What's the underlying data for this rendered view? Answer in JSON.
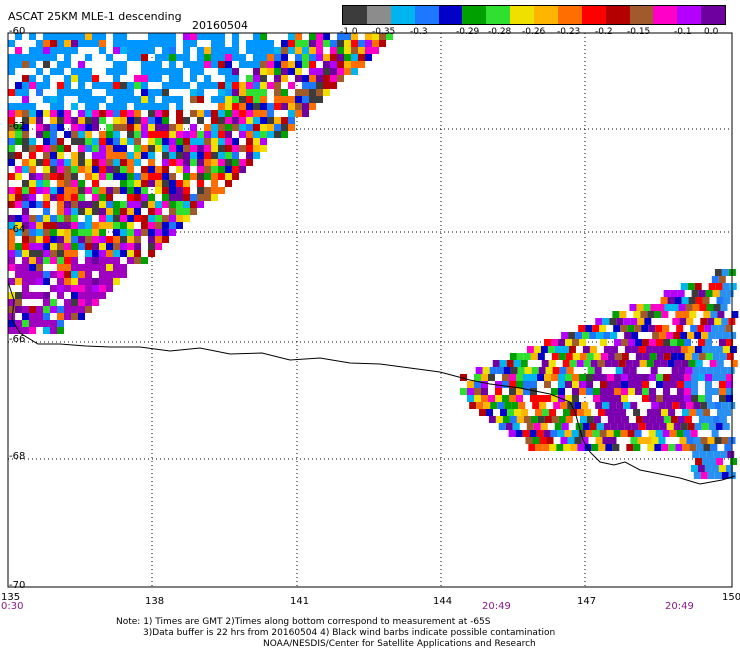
{
  "header": {
    "title": "ASCAT 25KM MLE-1 descending",
    "date": "20160504"
  },
  "legend": {
    "labels": [
      "-1.0",
      "-0.35",
      "-0.3",
      "-0.29",
      "-0.28",
      "-0.26",
      "-0.23",
      "-0.2",
      "-0.15",
      "-0.1",
      "0.0"
    ],
    "colors": [
      "#3c3c3c",
      "#8c8c8c",
      "#00b4f0",
      "#1e78ff",
      "#0000c8",
      "#00a000",
      "#30e030",
      "#f0e000",
      "#ffb400",
      "#ff6e00",
      "#ff0000",
      "#b40000",
      "#a05a2c",
      "#ff00c8",
      "#b400ff",
      "#6e00a0"
    ]
  },
  "axes": {
    "lat_labels": [
      "-60",
      "-62",
      "-64",
      "-66",
      "-68",
      "-70"
    ],
    "lon_labels": [
      "135",
      "138",
      "141",
      "144",
      "147",
      "150"
    ],
    "times": [
      "0:30",
      "20:49",
      "20:49"
    ]
  },
  "notes": {
    "line1": "Note: 1) Times are GMT 2)Times along bottom correspond to measurement at -65S",
    "line2": "3)Data buffer is 22 hrs from 20160504 4) Black wind barbs indicate possible contamination",
    "line3": "NOAA/NESDIS/Center for Satellite Applications and Research"
  }
}
